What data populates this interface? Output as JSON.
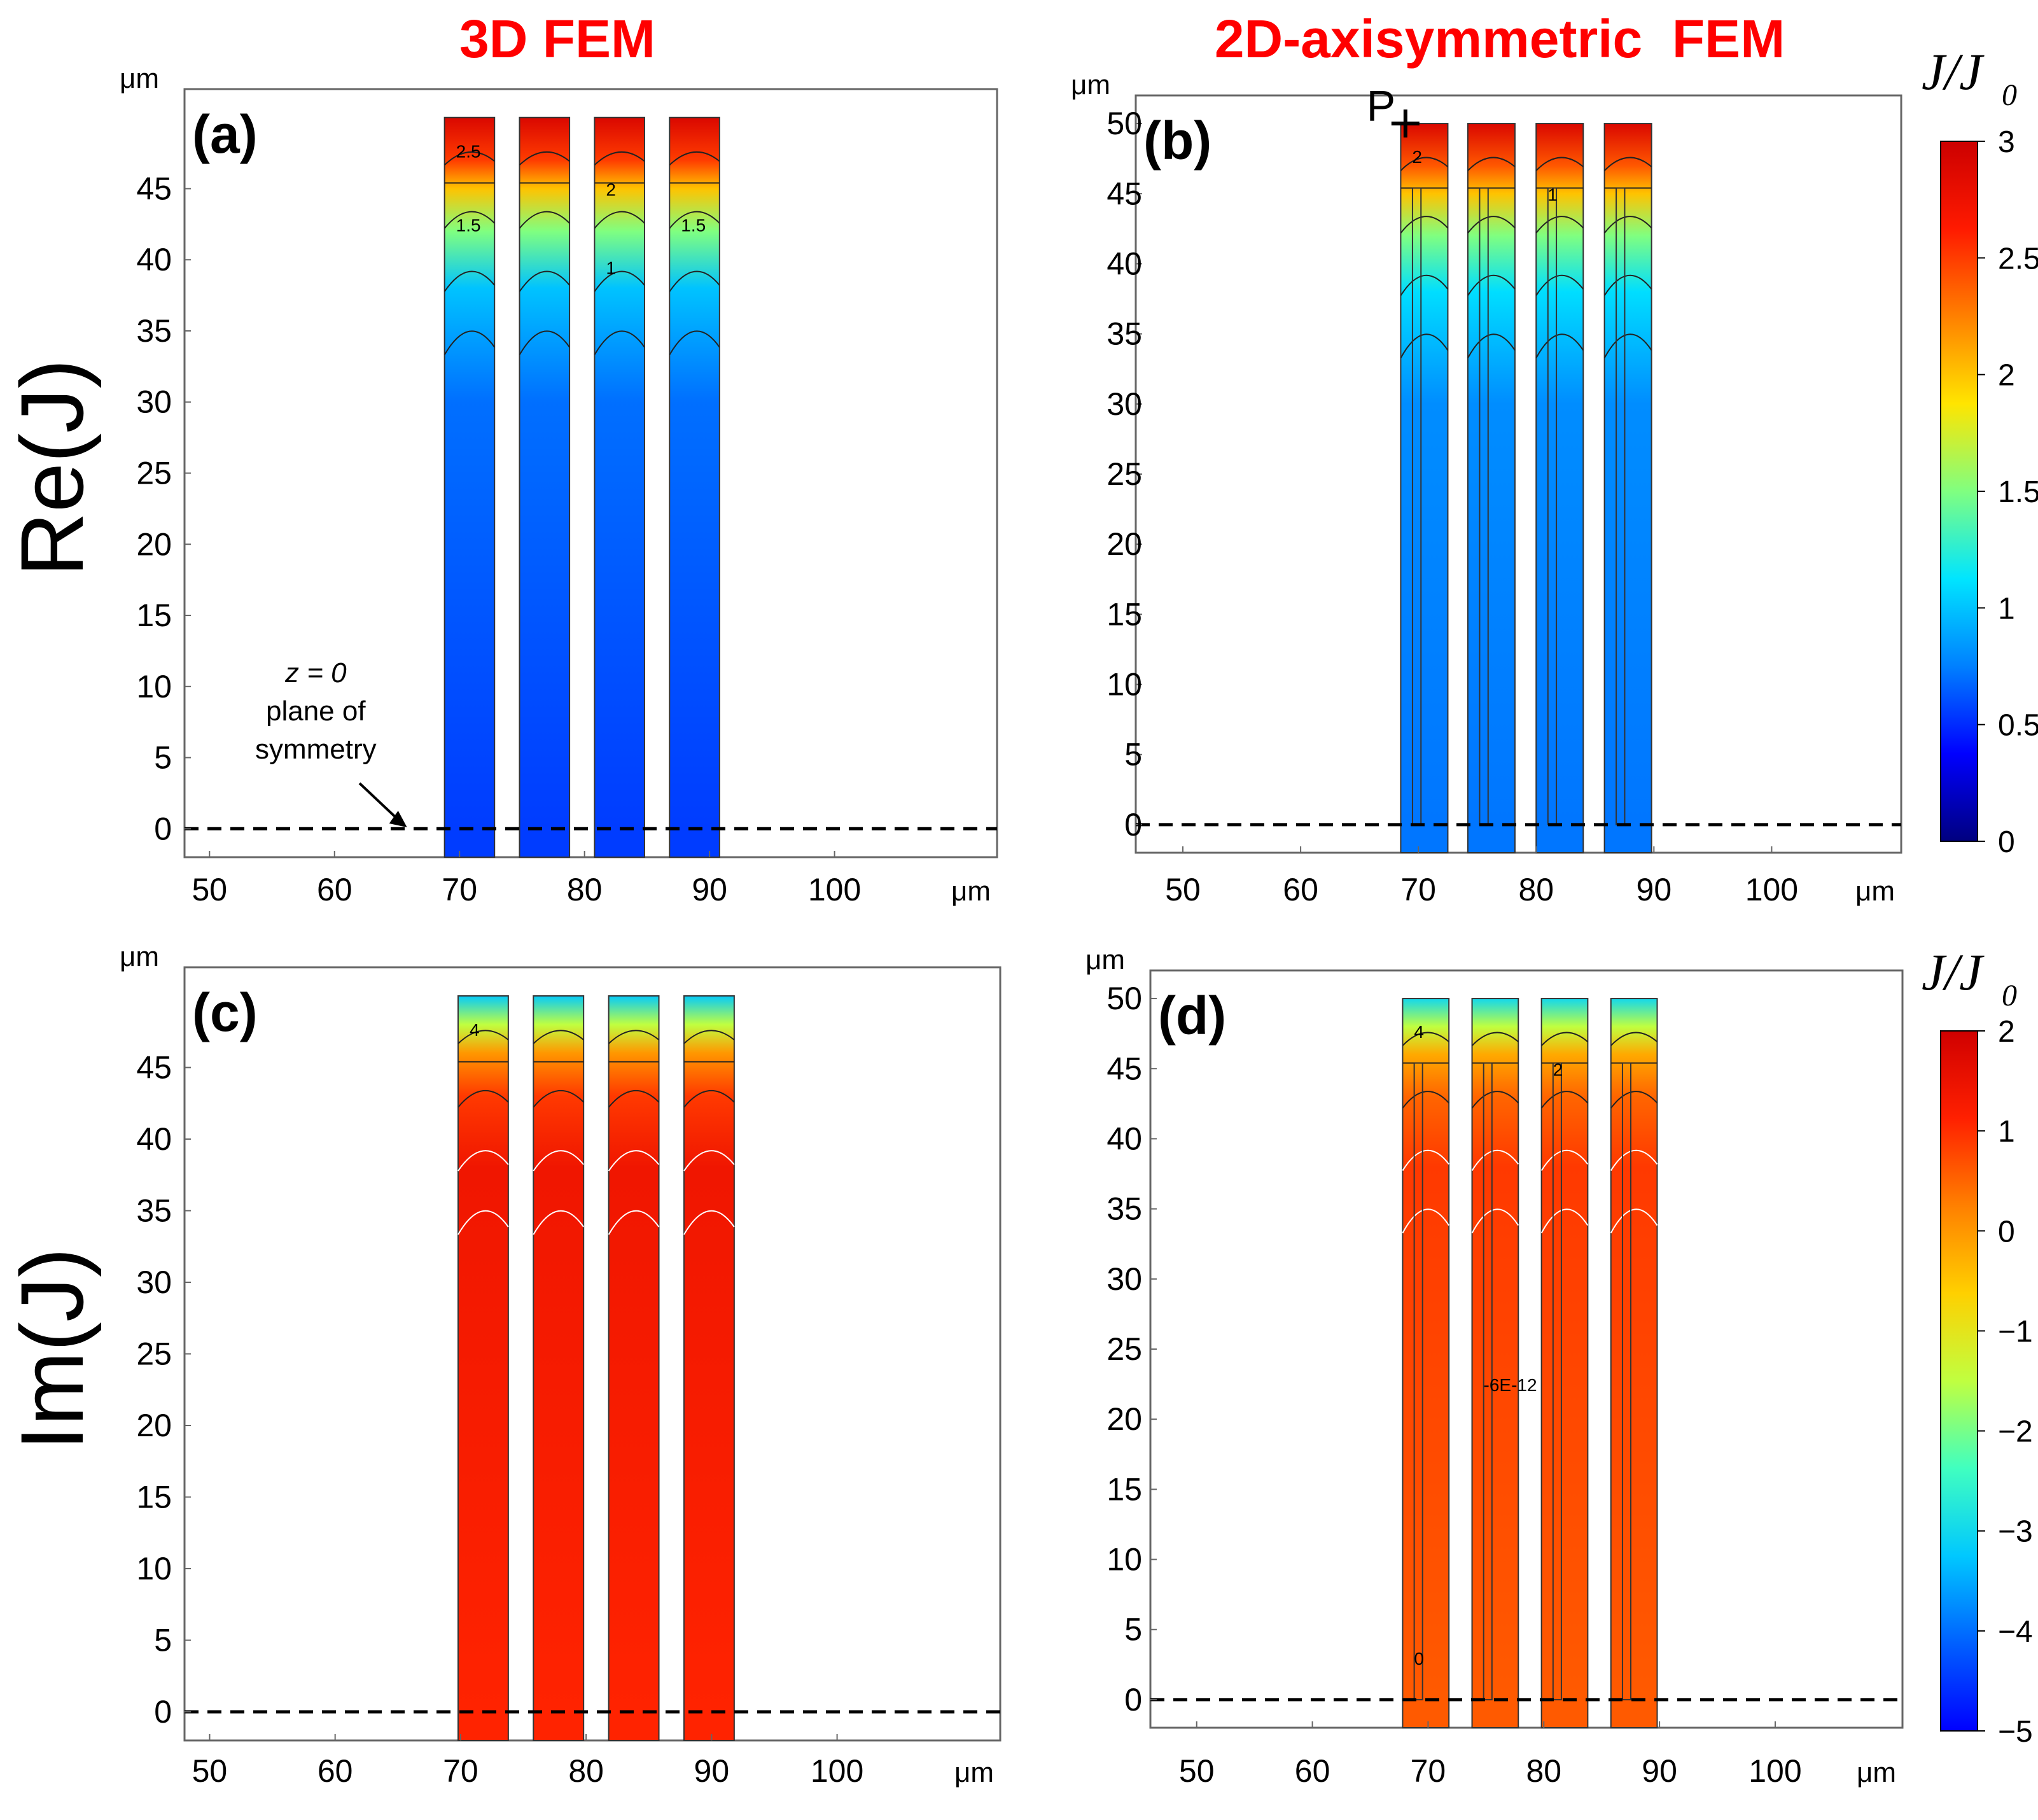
{
  "column_titles": {
    "left": "3D FEM",
    "right": "2D-axisymmetric  FEM"
  },
  "row_labels": {
    "top": "Re(J)",
    "bottom": "Im(J)"
  },
  "colorbars": [
    {
      "title_main": "J/J",
      "title_sub": "0",
      "ticks": [
        "3",
        "2.5",
        "2",
        "1.5",
        "1",
        "0.5",
        "0"
      ],
      "range": [
        0,
        3
      ],
      "colors": [
        "#00007f",
        "#0000ff",
        "#0080ff",
        "#00e5ff",
        "#80ff80",
        "#ffe500",
        "#ff8000",
        "#ff1a00",
        "#cc0000"
      ]
    },
    {
      "title_main": "J/J",
      "title_sub": "0",
      "ticks": [
        "2",
        "1",
        "0",
        "−1",
        "−2",
        "−3",
        "−4",
        "−5"
      ],
      "range": [
        -5,
        2
      ],
      "colors": [
        "#0000ff",
        "#0060ff",
        "#00c8ff",
        "#40ffc0",
        "#c0ff40",
        "#ffd000",
        "#ff8000",
        "#ff2000",
        "#d00000"
      ]
    }
  ],
  "chart_data": [
    {
      "panel": "(a)",
      "type": "heatmap",
      "quantity": "Re(J) normalized J/J0",
      "method": "3D FEM",
      "xlabel": "μm",
      "ylabel": "μm",
      "xlim": [
        48,
        113
      ],
      "ylim": [
        -2,
        52
      ],
      "x_ticks": [
        "50",
        "60",
        "70",
        "80",
        "90",
        "100"
      ],
      "x_unit": "μm",
      "y_ticks": [
        "45",
        "40",
        "35",
        "30",
        "25",
        "20",
        "15",
        "10",
        "5",
        "0"
      ],
      "y_unit": "μm",
      "conductors": [
        {
          "x0": 68.8,
          "x1": 72.8,
          "y0": -2,
          "y1": 50
        },
        {
          "x0": 74.8,
          "x1": 78.8,
          "y0": -2,
          "y1": 50
        },
        {
          "x0": 80.8,
          "x1": 84.8,
          "y0": -2,
          "y1": 50
        },
        {
          "x0": 86.8,
          "x1": 90.8,
          "y0": -2,
          "y1": 50
        }
      ],
      "inner_line_y": 45.4,
      "color_stops": [
        [
          50,
          2.9
        ],
        [
          47,
          2.5
        ],
        [
          45,
          2.0
        ],
        [
          42,
          1.5
        ],
        [
          38,
          1.0
        ],
        [
          30,
          0.7
        ],
        [
          0,
          0.55
        ]
      ],
      "contour_labels": [
        "2.5",
        "2",
        "1.5",
        "1.5",
        "1"
      ],
      "annotation": {
        "line1": "z = 0",
        "line2": "plane of",
        "line3": "symmetry"
      }
    },
    {
      "panel": "(b)",
      "type": "heatmap",
      "quantity": "Re(J) normalized J/J0",
      "method": "2D-axisymmetric FEM",
      "xlabel": "μm",
      "ylabel": "μm",
      "xlim": [
        46,
        111
      ],
      "ylim": [
        -2,
        52
      ],
      "x_ticks": [
        "50",
        "60",
        "70",
        "80",
        "90",
        "100"
      ],
      "x_unit": "μm",
      "y_ticks": [
        "50",
        "45",
        "40",
        "35",
        "30",
        "25",
        "20",
        "15",
        "10",
        "5",
        "0"
      ],
      "y_unit": "μm",
      "conductors": [
        {
          "x0": 68.5,
          "x1": 72.5,
          "y0": -2,
          "y1": 50
        },
        {
          "x0": 74.2,
          "x1": 78.2,
          "y0": -2,
          "y1": 50
        },
        {
          "x0": 80.0,
          "x1": 84.0,
          "y0": -2,
          "y1": 50
        },
        {
          "x0": 85.8,
          "x1": 89.8,
          "y0": -2,
          "y1": 50
        }
      ],
      "inner_line_y": 45.4,
      "color_stops": [
        [
          50,
          2.9
        ],
        [
          47,
          2.4
        ],
        [
          45,
          2.0
        ],
        [
          42,
          1.5
        ],
        [
          38,
          1.1
        ],
        [
          30,
          0.8
        ],
        [
          0,
          0.72
        ]
      ],
      "contour_labels": [
        "2",
        "1"
      ],
      "point_label": "P"
    },
    {
      "panel": "(c)",
      "type": "heatmap",
      "quantity": "Im(J) normalized J/J0",
      "method": "3D FEM",
      "xlabel": "μm",
      "ylabel": "μm",
      "xlim": [
        48,
        113
      ],
      "ylim": [
        -2,
        52
      ],
      "x_ticks": [
        "50",
        "60",
        "70",
        "80",
        "90",
        "100"
      ],
      "x_unit": "μm",
      "y_ticks": [
        "45",
        "40",
        "35",
        "30",
        "25",
        "20",
        "15",
        "10",
        "5",
        "0"
      ],
      "y_unit": "μm",
      "conductors": [
        {
          "x0": 69.8,
          "x1": 73.8,
          "y0": -2,
          "y1": 50
        },
        {
          "x0": 75.8,
          "x1": 79.8,
          "y0": -2,
          "y1": 50
        },
        {
          "x0": 81.8,
          "x1": 85.8,
          "y0": -2,
          "y1": 50
        },
        {
          "x0": 87.8,
          "x1": 91.8,
          "y0": -2,
          "y1": 50
        }
      ],
      "inner_line_y": 45.4,
      "color_stops": [
        [
          50,
          -3.2
        ],
        [
          48,
          -1.5
        ],
        [
          46,
          0.0
        ],
        [
          43,
          0.9
        ],
        [
          38,
          1.4
        ],
        [
          0,
          1.1
        ]
      ],
      "contour_labels": [
        "4"
      ]
    },
    {
      "panel": "(d)",
      "type": "heatmap",
      "quantity": "Im(J) normalized J/J0",
      "method": "2D-axisymmetric FEM",
      "xlabel": "μm",
      "ylabel": "μm",
      "xlim": [
        46,
        111
      ],
      "ylim": [
        -2,
        52
      ],
      "x_ticks": [
        "50",
        "60",
        "70",
        "80",
        "90",
        "100"
      ],
      "x_unit": "μm",
      "y_ticks": [
        "50",
        "45",
        "40",
        "35",
        "30",
        "25",
        "20",
        "15",
        "10",
        "5",
        "0"
      ],
      "y_unit": "μm",
      "conductors": [
        {
          "x0": 67.8,
          "x1": 71.8,
          "y0": -2,
          "y1": 50
        },
        {
          "x0": 73.8,
          "x1": 77.8,
          "y0": -2,
          "y1": 50
        },
        {
          "x0": 79.8,
          "x1": 83.8,
          "y0": -2,
          "y1": 50
        },
        {
          "x0": 85.8,
          "x1": 89.8,
          "y0": -2,
          "y1": 50
        }
      ],
      "inner_line_y": 45.4,
      "color_stops": [
        [
          50,
          -3.0
        ],
        [
          48,
          -1.5
        ],
        [
          46,
          -0.2
        ],
        [
          43,
          0.5
        ],
        [
          38,
          0.9
        ],
        [
          0,
          0.6
        ]
      ],
      "contour_labels": [
        "4",
        "2",
        "-6E-12",
        "0"
      ]
    }
  ]
}
